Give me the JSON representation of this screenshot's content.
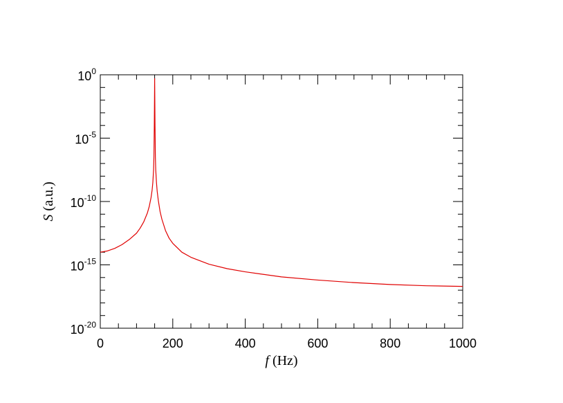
{
  "chart_data": {
    "type": "line",
    "xlabel": {
      "symbol": "f",
      "unit": "(Hz)"
    },
    "ylabel": {
      "symbol": "S",
      "unit": "(a.u.)"
    },
    "xlim": [
      0,
      1000
    ],
    "ylim_log10": [
      -20,
      0
    ],
    "y_scale": "log",
    "grid": false,
    "legend": "none",
    "x_ticks": [
      "0",
      "200",
      "400",
      "600",
      "800",
      "1000"
    ],
    "y_ticks": [
      {
        "base": "10",
        "exp": "0"
      },
      {
        "base": "10",
        "exp": "-5"
      },
      {
        "base": "10",
        "exp": "-10"
      },
      {
        "base": "10",
        "exp": "-15"
      },
      {
        "base": "10",
        "exp": "-20"
      }
    ],
    "series": [
      {
        "color": "#e00000",
        "x": [
          0,
          20,
          40,
          60,
          80,
          100,
          110,
          120,
          130,
          135,
          140,
          143,
          145,
          147,
          148,
          149,
          150,
          151,
          152,
          153,
          155,
          157,
          160,
          165,
          170,
          180,
          190,
          200,
          225,
          250,
          300,
          350,
          400,
          450,
          500,
          600,
          700,
          800,
          900,
          1000
        ],
        "y_log10": [
          -14.0,
          -13.9,
          -13.7,
          -13.4,
          -13.0,
          -12.5,
          -12.1,
          -11.6,
          -10.9,
          -10.4,
          -9.7,
          -9.1,
          -8.5,
          -7.5,
          -6.5,
          -4.0,
          -0.3,
          -4.0,
          -6.5,
          -7.5,
          -8.5,
          -9.2,
          -9.9,
          -10.8,
          -11.4,
          -12.3,
          -12.9,
          -13.3,
          -14.0,
          -14.4,
          -14.95,
          -15.3,
          -15.55,
          -15.75,
          -15.95,
          -16.2,
          -16.4,
          -16.55,
          -16.65,
          -16.7
        ]
      }
    ]
  }
}
